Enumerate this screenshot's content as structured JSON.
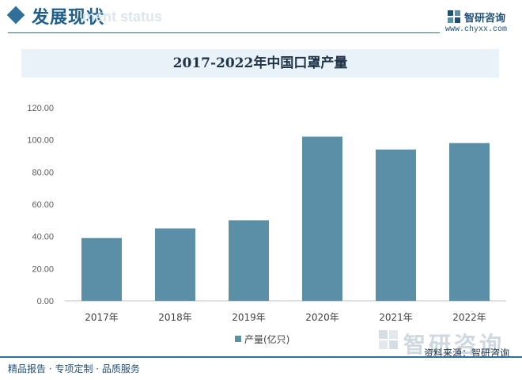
{
  "header": {
    "section_title": "发展现状",
    "section_subtitle": "ment status",
    "brand_name": "智研咨询",
    "site_url": "www.chyxx.com"
  },
  "footer": {
    "tagline": "精品报告 · 专项定制 · 品质服务",
    "source": "资料来源：智研咨询",
    "watermark": "智研咨询"
  },
  "colors": {
    "bar": "#5b8fa8",
    "accent": "#2f6f9a"
  },
  "chart_data": {
    "type": "bar",
    "title": "2017-2022年中国口罩产量",
    "categories": [
      "2017年",
      "2018年",
      "2019年",
      "2020年",
      "2021年",
      "2022年"
    ],
    "series": [
      {
        "name": "产量(亿只)",
        "values": [
          39.0,
          45.0,
          50.0,
          102.0,
          94.0,
          98.0
        ]
      }
    ],
    "ylim": [
      0,
      120
    ],
    "yticks": [
      "0.00",
      "20.00",
      "40.00",
      "60.00",
      "80.00",
      "100.00",
      "120.00"
    ],
    "grid": false,
    "legend_position": "bottom"
  }
}
